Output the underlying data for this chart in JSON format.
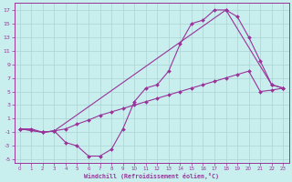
{
  "xlabel": "Windchill (Refroidissement éolien,°C)",
  "xlim": [
    -0.5,
    23.5
  ],
  "ylim": [
    -5.5,
    18
  ],
  "xticks": [
    0,
    1,
    2,
    3,
    4,
    5,
    6,
    7,
    8,
    9,
    10,
    11,
    12,
    13,
    14,
    15,
    16,
    17,
    18,
    19,
    20,
    21,
    22,
    23
  ],
  "yticks": [
    -5,
    -3,
    -1,
    1,
    3,
    5,
    7,
    9,
    11,
    13,
    15,
    17
  ],
  "bg_color": "#c8eeee",
  "line_color": "#993399",
  "grid_color": "#aad4d4",
  "curve1_x": [
    0,
    1,
    2,
    3,
    4,
    5,
    6,
    7,
    8,
    9,
    10,
    11,
    12,
    13,
    14,
    15,
    16,
    17,
    18,
    22,
    23
  ],
  "curve1_y": [
    -0.5,
    -0.7,
    -1.0,
    -0.8,
    -2.5,
    -3.0,
    -4.5,
    -4.5,
    -3.5,
    -0.5,
    3.5,
    5.5,
    6.0,
    8.0,
    12.0,
    15.0,
    15.5,
    17.0,
    17.0,
    6.0,
    5.5
  ],
  "curve2_x": [
    0,
    2,
    3,
    18,
    19,
    20,
    21,
    22,
    23
  ],
  "curve2_y": [
    -0.5,
    -1.0,
    -0.8,
    17.0,
    16.0,
    13.0,
    9.5,
    6.0,
    5.5
  ],
  "curve3_x": [
    0,
    1,
    2,
    3,
    4,
    5,
    6,
    7,
    8,
    9,
    10,
    11,
    12,
    13,
    14,
    15,
    16,
    17,
    18,
    19,
    20,
    21,
    22,
    23
  ],
  "curve3_y": [
    -0.5,
    -0.5,
    -1.0,
    -0.8,
    -0.5,
    0.2,
    0.8,
    1.5,
    2.0,
    2.5,
    3.0,
    3.5,
    4.0,
    4.5,
    5.0,
    5.5,
    6.0,
    6.5,
    7.0,
    7.5,
    8.0,
    5.0,
    5.2,
    5.5
  ]
}
